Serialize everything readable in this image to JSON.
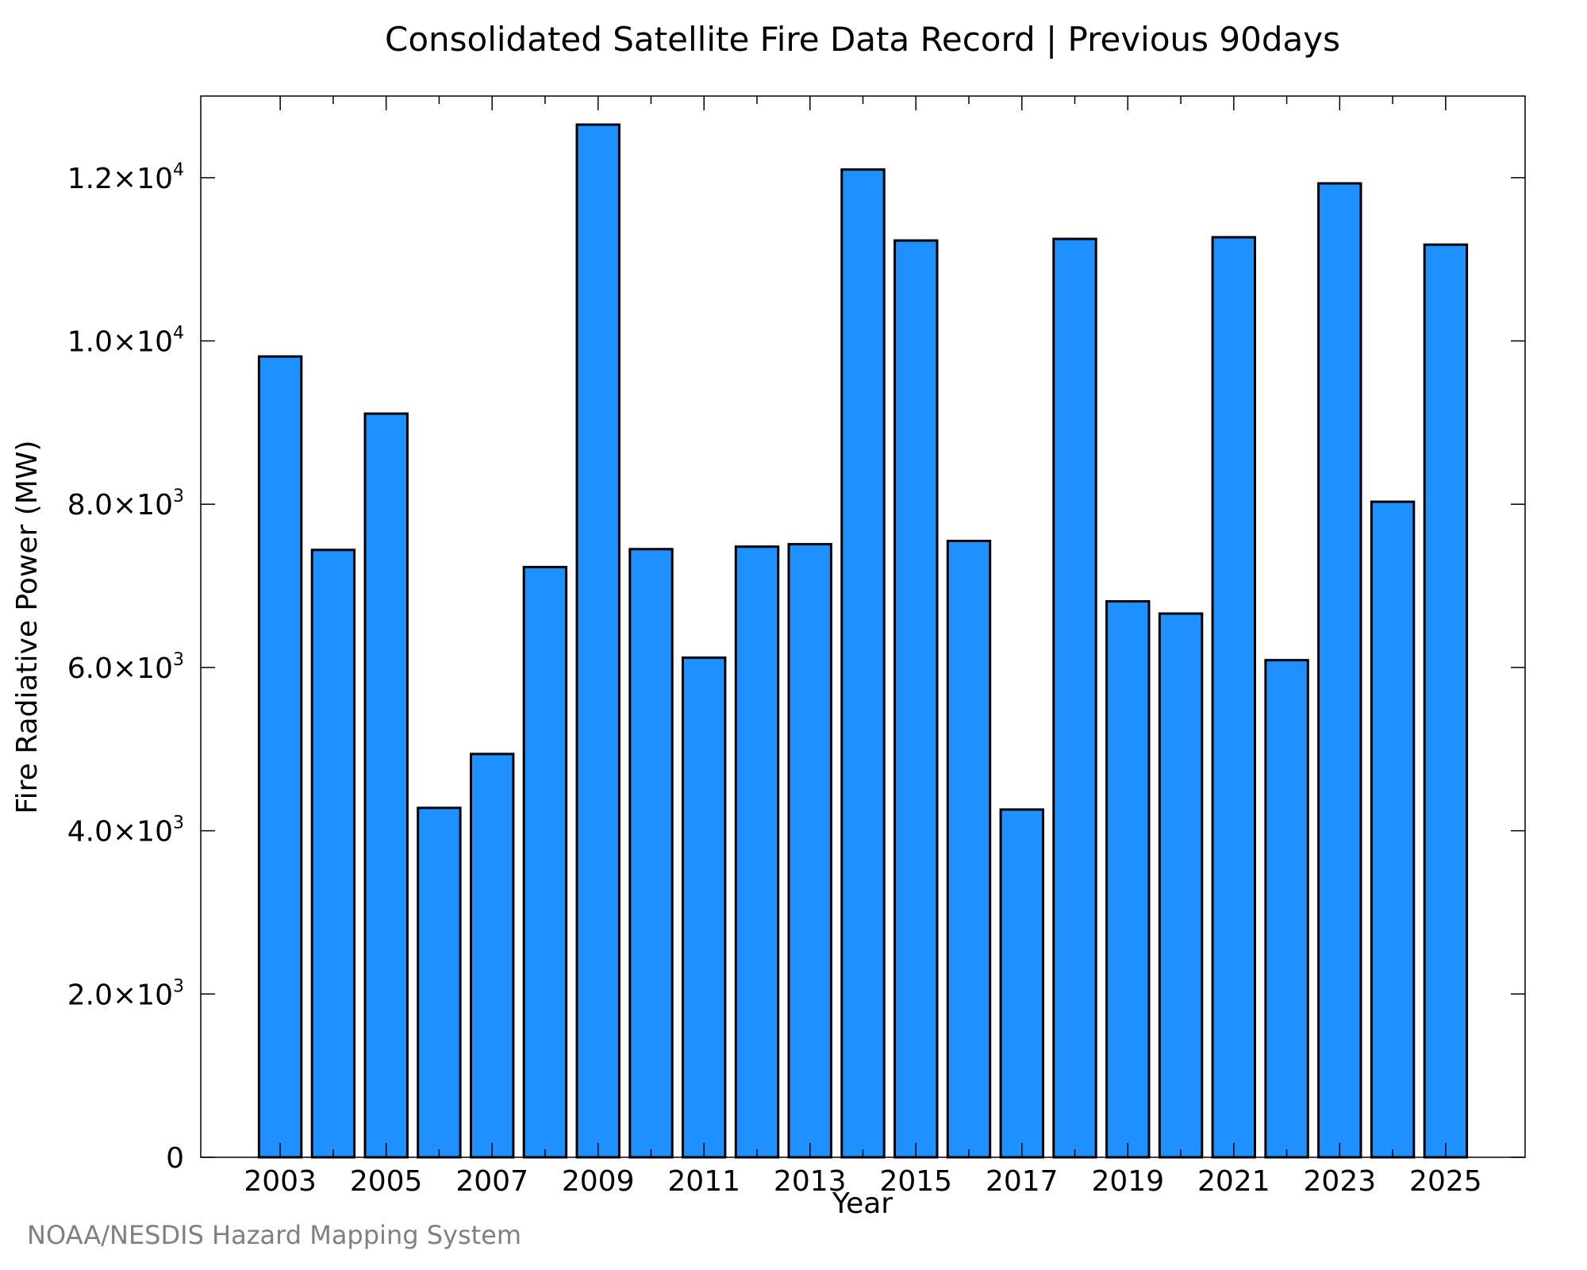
{
  "chart_data": {
    "type": "bar",
    "title": "Consolidated Satellite Fire Data Record | Previous 90days",
    "xlabel": "Year",
    "ylabel": "Fire Radiative Power (MW)",
    "x": [
      2003,
      2004,
      2005,
      2006,
      2007,
      2008,
      2009,
      2010,
      2011,
      2012,
      2013,
      2014,
      2015,
      2016,
      2017,
      2018,
      2019,
      2020,
      2021,
      2022,
      2023,
      2024,
      2025
    ],
    "values": [
      9810,
      7440,
      9110,
      4280,
      4940,
      7230,
      12650,
      7450,
      6120,
      7480,
      7510,
      12100,
      11230,
      7550,
      4260,
      11250,
      6810,
      6660,
      11270,
      6090,
      11930,
      8030,
      11180
    ],
    "xlim": [
      2001.5,
      2026.5
    ],
    "ylim": [
      0,
      13000
    ],
    "xticks": [
      2003,
      2005,
      2007,
      2009,
      2011,
      2013,
      2015,
      2017,
      2019,
      2021,
      2023,
      2025
    ],
    "yticks": [
      {
        "value": 0,
        "mantissa": "0",
        "exponent": ""
      },
      {
        "value": 2000,
        "mantissa": "2.0×10",
        "exponent": "3"
      },
      {
        "value": 4000,
        "mantissa": "4.0×10",
        "exponent": "3"
      },
      {
        "value": 6000,
        "mantissa": "6.0×10",
        "exponent": "3"
      },
      {
        "value": 8000,
        "mantissa": "8.0×10",
        "exponent": "3"
      },
      {
        "value": 10000,
        "mantissa": "1.0×10",
        "exponent": "4"
      },
      {
        "value": 12000,
        "mantissa": "1.2×10",
        "exponent": "4"
      }
    ],
    "bar_color": "#1E90FF",
    "grid": false,
    "legend": "none"
  },
  "credit": "NOAA/NESDIS Hazard Mapping System"
}
